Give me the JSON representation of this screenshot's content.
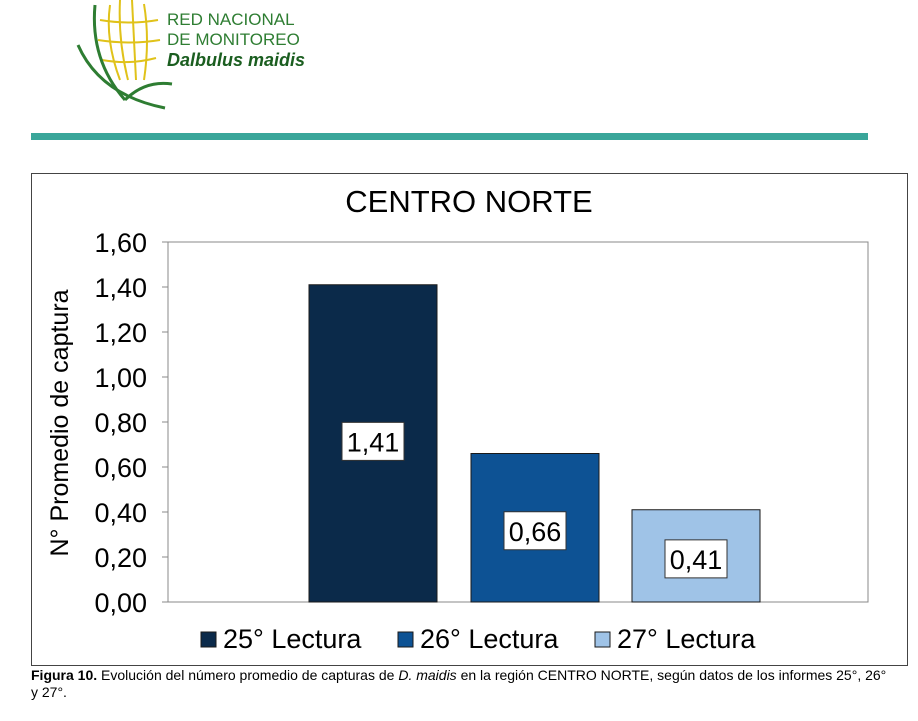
{
  "logo": {
    "line1": "RED NACIONAL",
    "line2": "DE MONITOREO",
    "line3": "Dalbulus maidis",
    "color": "#2e7d32"
  },
  "rule_color": "#3aa69a",
  "chart_data": {
    "type": "bar",
    "title": "CENTRO NORTE",
    "ylabel": "N° Promedio de captura",
    "xlabel": "",
    "ylim": [
      0,
      1.6
    ],
    "yticks": [
      "0,00",
      "0,20",
      "0,40",
      "0,60",
      "0,80",
      "1,00",
      "1,20",
      "1,40",
      "1,60"
    ],
    "grid": false,
    "legend_position": "bottom",
    "series": [
      {
        "name": "25° Lectura",
        "value": 1.41,
        "label": "1,41",
        "color": "#0b2a4a"
      },
      {
        "name": "26° Lectura",
        "value": 0.66,
        "label": "0,66",
        "color": "#0d5294"
      },
      {
        "name": "27° Lectura",
        "value": 0.41,
        "label": "0,41",
        "color": "#9fc3e7"
      }
    ]
  },
  "caption": {
    "bold": "Figura 10.",
    "text1": " Evolución del número promedio de capturas de ",
    "italic": "D. maidis",
    "text2": " en la región CENTRO NORTE, según datos de los informes 25°, 26° y 27°."
  }
}
